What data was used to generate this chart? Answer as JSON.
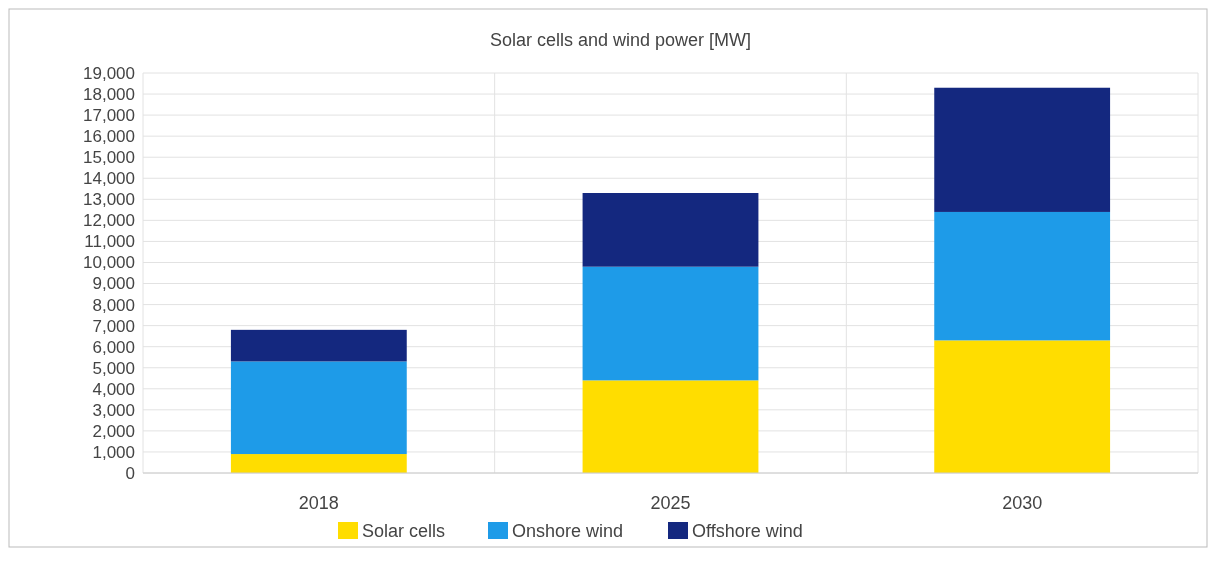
{
  "chart_data": {
    "type": "bar",
    "title": "Solar cells and wind power [MW]",
    "categories": [
      "2018",
      "2025",
      "2030"
    ],
    "stacked": true,
    "series": [
      {
        "name": "Solar cells",
        "color": "#ffdd00",
        "values": [
          900,
          4400,
          6300
        ]
      },
      {
        "name": "Onshore wind",
        "color": "#1e9be8",
        "values": [
          4400,
          5400,
          6100
        ]
      },
      {
        "name": "Offshore wind",
        "color": "#14287f",
        "values": [
          1500,
          3500,
          5900
        ]
      }
    ],
    "ylim": [
      0,
      19000
    ],
    "yticks": [
      {
        "value": 0,
        "label": "0"
      },
      {
        "value": 1000,
        "label": "1,000"
      },
      {
        "value": 2000,
        "label": "2,000"
      },
      {
        "value": 3000,
        "label": "3,000"
      },
      {
        "value": 4000,
        "label": "4,000"
      },
      {
        "value": 5000,
        "label": "5,000"
      },
      {
        "value": 6000,
        "label": "6,000"
      },
      {
        "value": 7000,
        "label": "7,000"
      },
      {
        "value": 8000,
        "label": "8,000"
      },
      {
        "value": 9000,
        "label": "9,000"
      },
      {
        "value": 10000,
        "label": "10,000"
      },
      {
        "value": 11000,
        "label": "11,000"
      },
      {
        "value": 12000,
        "label": "12,000"
      },
      {
        "value": 13000,
        "label": "13,000"
      },
      {
        "value": 14000,
        "label": "14,000"
      },
      {
        "value": 15000,
        "label": "15,000"
      },
      {
        "value": 16000,
        "label": "16,000"
      },
      {
        "value": 17000,
        "label": "17,000"
      },
      {
        "value": 18000,
        "label": "18,000"
      },
      {
        "value": 19000,
        "label": "19,000"
      }
    ],
    "grid": true,
    "legend": "bottom"
  }
}
